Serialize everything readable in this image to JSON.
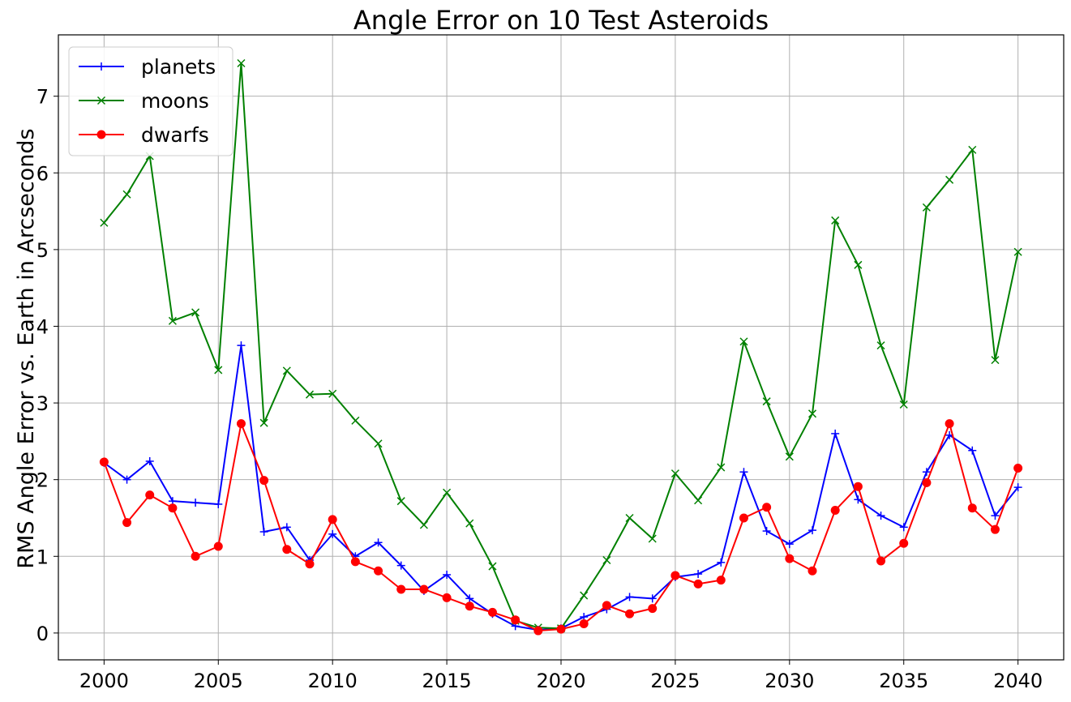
{
  "chart_data": {
    "type": "line",
    "title": "Angle Error on 10 Test Asteroids",
    "xlabel": "",
    "ylabel": "RMS Angle Error vs. Earth in Arcseconds",
    "xlim": [
      1998,
      2042
    ],
    "ylim": [
      -0.35,
      7.8
    ],
    "xticks": [
      2000,
      2005,
      2010,
      2015,
      2020,
      2025,
      2030,
      2035,
      2040
    ],
    "yticks": [
      0,
      1,
      2,
      3,
      4,
      5,
      6,
      7
    ],
    "grid": true,
    "legend_position": "top-left",
    "x": [
      2000,
      2001,
      2002,
      2003,
      2004,
      2005,
      2006,
      2007,
      2008,
      2009,
      2010,
      2011,
      2012,
      2013,
      2014,
      2015,
      2016,
      2017,
      2018,
      2019,
      2020,
      2021,
      2022,
      2023,
      2024,
      2025,
      2026,
      2027,
      2028,
      2029,
      2030,
      2031,
      2032,
      2033,
      2034,
      2035,
      2036,
      2037,
      2038,
      2039,
      2040
    ],
    "series": [
      {
        "name": "planets",
        "color": "#0000ff",
        "marker": "plus",
        "values": [
          2.22,
          2.0,
          2.24,
          1.72,
          1.7,
          1.68,
          3.75,
          1.32,
          1.38,
          0.95,
          1.29,
          1.0,
          1.18,
          0.88,
          0.55,
          0.76,
          0.45,
          0.25,
          0.09,
          0.04,
          0.06,
          0.21,
          0.31,
          0.47,
          0.45,
          0.73,
          0.77,
          0.92,
          2.1,
          1.33,
          1.16,
          1.34,
          2.6,
          1.74,
          1.53,
          1.38,
          2.1,
          2.58,
          2.38,
          1.53,
          1.9
        ]
      },
      {
        "name": "moons",
        "color": "#008000",
        "marker": "x",
        "values": [
          5.35,
          5.72,
          6.22,
          4.07,
          4.18,
          3.43,
          7.43,
          2.74,
          3.42,
          3.11,
          3.12,
          2.77,
          2.47,
          1.72,
          1.41,
          1.83,
          1.43,
          0.87,
          0.16,
          0.07,
          0.06,
          0.49,
          0.95,
          1.5,
          1.23,
          2.08,
          1.73,
          2.16,
          3.8,
          3.02,
          2.3,
          2.86,
          5.38,
          4.8,
          3.75,
          2.98,
          5.55,
          5.91,
          6.3,
          3.56,
          4.97
        ]
      },
      {
        "name": "dwarfs",
        "color": "#ff0000",
        "marker": "circle",
        "values": [
          2.23,
          1.44,
          1.8,
          1.63,
          1.0,
          1.13,
          2.73,
          1.99,
          1.09,
          0.9,
          1.48,
          0.93,
          0.81,
          0.57,
          0.57,
          0.46,
          0.35,
          0.27,
          0.17,
          0.03,
          0.05,
          0.12,
          0.36,
          0.25,
          0.32,
          0.75,
          0.64,
          0.69,
          1.5,
          1.64,
          0.97,
          0.81,
          1.6,
          1.91,
          0.94,
          1.17,
          1.96,
          2.73,
          1.63,
          1.35,
          2.15
        ]
      }
    ]
  }
}
